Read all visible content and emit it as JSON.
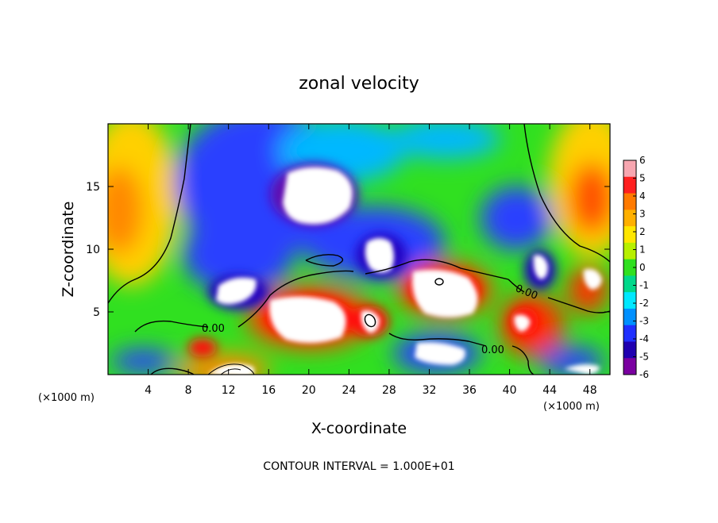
{
  "chart_data": {
    "type": "heatmap",
    "title": "zonal velocity",
    "xlabel": "X-coordinate",
    "ylabel": "Z-coordinate",
    "x_unit": "(×1000 m)",
    "x_unit_left": "(×1000 m)",
    "xlim": [
      0,
      50
    ],
    "ylim": [
      0,
      20
    ],
    "x_ticks": [
      4,
      8,
      12,
      16,
      20,
      24,
      28,
      32,
      36,
      40,
      44,
      48
    ],
    "y_ticks": [
      5,
      10,
      15
    ],
    "colorbar": {
      "min": -6,
      "max": 6,
      "ticks": [
        6,
        5,
        4,
        3,
        2,
        1,
        0,
        -1,
        -2,
        -3,
        -4,
        -5,
        -6
      ],
      "colors": [
        "#f7a6b0",
        "#ff2020",
        "#ff7a00",
        "#ffb000",
        "#ffe600",
        "#b8f000",
        "#30e020",
        "#00d88a",
        "#00e8ff",
        "#0090ff",
        "#2030ff",
        "#2000b0",
        "#7a00a0"
      ]
    },
    "contour_labels": [
      "0.00",
      "0.00",
      "0.00"
    ],
    "contour_interval_text": "CONTOUR INTERVAL = 1.000E+01"
  }
}
